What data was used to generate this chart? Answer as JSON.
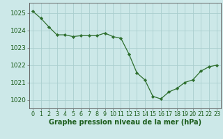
{
  "x": [
    0,
    1,
    2,
    3,
    4,
    5,
    6,
    7,
    8,
    9,
    10,
    11,
    12,
    13,
    14,
    15,
    16,
    17,
    18,
    19,
    20,
    21,
    22,
    23
  ],
  "y": [
    1025.1,
    1024.7,
    1024.2,
    1023.75,
    1023.75,
    1023.65,
    1023.7,
    1023.7,
    1023.7,
    1023.85,
    1023.65,
    1023.55,
    1022.65,
    1021.55,
    1021.15,
    1020.2,
    1020.05,
    1020.45,
    1020.65,
    1021.0,
    1021.15,
    1021.65,
    1021.9,
    1022.0
  ],
  "line_color": "#2d6e2d",
  "marker": "D",
  "marker_size": 2.2,
  "bg_color": "#cce8e8",
  "grid_color": "#aacece",
  "text_color": "#1a5c1a",
  "xlabel": "Graphe pression niveau de la mer (hPa)",
  "ylim": [
    1019.5,
    1025.6
  ],
  "xlim": [
    -0.5,
    23.5
  ],
  "yticks": [
    1020,
    1021,
    1022,
    1023,
    1024,
    1025
  ],
  "xtick_labels": [
    "0",
    "1",
    "2",
    "3",
    "4",
    "5",
    "6",
    "7",
    "8",
    "9",
    "10",
    "11",
    "12",
    "13",
    "14",
    "15",
    "16",
    "17",
    "18",
    "19",
    "20",
    "21",
    "22",
    "23"
  ],
  "xlabel_fontsize": 7,
  "xlabel_fontweight": "bold",
  "ytick_fontsize": 6.5,
  "xtick_fontsize": 5.8
}
